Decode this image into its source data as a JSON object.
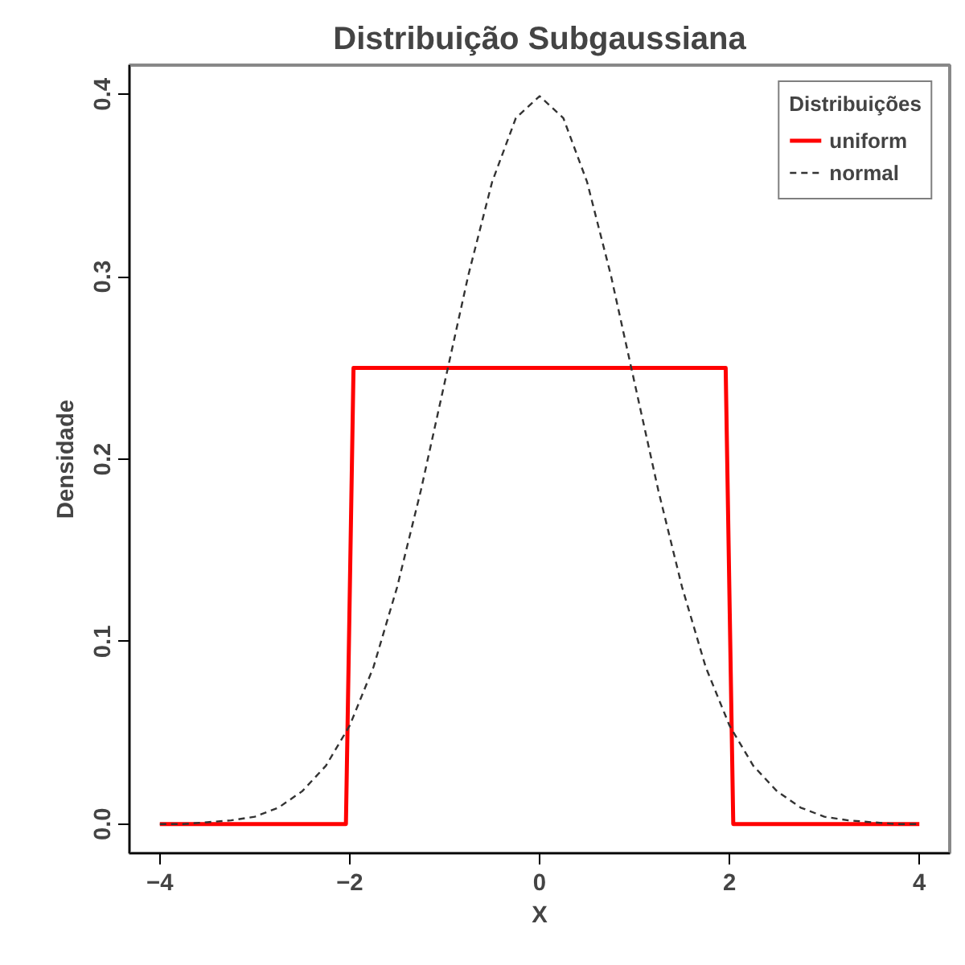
{
  "chart_data": {
    "type": "line",
    "title": "Distribuição Subgaussiana",
    "xlabel": "X",
    "ylabel": "Densidade",
    "legend_title": "Distribuições",
    "legend": "top right",
    "xlim": [
      -4.32,
      4.32
    ],
    "ylim": [
      -0.016,
      0.416
    ],
    "xticks": [
      -4,
      -2,
      0,
      2,
      4
    ],
    "yticks": [
      {
        "value": 0,
        "label": "0.0"
      },
      0.1,
      0.2,
      0.3,
      0.4
    ],
    "series": [
      {
        "name": "uniform",
        "color": "#ff0000",
        "line_style": "solid",
        "x": [
          -4,
          -2.04,
          -1.96,
          1.96,
          2.04,
          4
        ],
        "values": [
          0,
          0,
          0.25,
          0.25,
          0,
          0
        ]
      },
      {
        "name": "normal",
        "color": "#333333",
        "line_style": "dashed",
        "x": [
          -4,
          -3.75,
          -3.5,
          -3.25,
          -3,
          -2.75,
          -2.5,
          -2.25,
          -2,
          -1.75,
          -1.5,
          -1.25,
          -1,
          -0.75,
          -0.5,
          -0.25,
          0,
          0.25,
          0.5,
          0.75,
          1,
          1.25,
          1.5,
          1.75,
          2,
          2.25,
          2.5,
          2.75,
          3,
          3.25,
          3.5,
          3.75,
          4
        ],
        "values": [
          0,
          0,
          0.001,
          0.002,
          0.004,
          0.009,
          0.018,
          0.032,
          0.054,
          0.086,
          0.13,
          0.183,
          0.242,
          0.301,
          0.352,
          0.387,
          0.399,
          0.387,
          0.352,
          0.301,
          0.242,
          0.183,
          0.13,
          0.086,
          0.054,
          0.032,
          0.018,
          0.009,
          0.004,
          0.002,
          0.001,
          0,
          0
        ]
      }
    ]
  }
}
